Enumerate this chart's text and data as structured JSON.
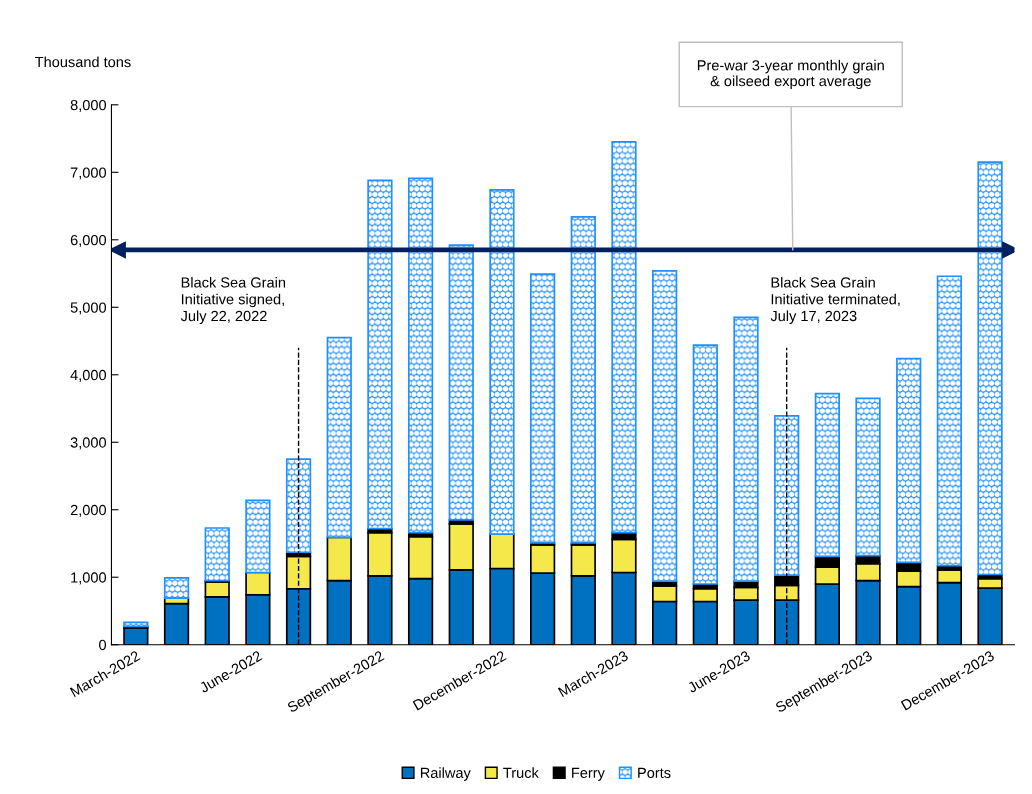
{
  "chart_data": {
    "type": "bar",
    "stacked": true,
    "ylabel": "Thousand tons",
    "categories": [
      "March-2022",
      null,
      null,
      "June-2022",
      null,
      null,
      "September-2022",
      null,
      null,
      "December-2022",
      null,
      null,
      "March-2023",
      null,
      null,
      "June-2023",
      null,
      null,
      "September-2023",
      null,
      null,
      "December-2023"
    ],
    "series": [
      {
        "name": "Railway",
        "color": "#0070c0",
        "values": [
          250,
          610,
          710,
          740,
          830,
          950,
          1020,
          980,
          1110,
          1130,
          1060,
          1020,
          1070,
          640,
          640,
          660,
          660,
          900,
          950,
          860,
          920,
          840
        ]
      },
      {
        "name": "Truck",
        "color": "#f5e84a",
        "values": [
          20,
          80,
          220,
          330,
          480,
          640,
          640,
          620,
          680,
          510,
          420,
          460,
          490,
          230,
          190,
          190,
          220,
          250,
          250,
          230,
          190,
          140
        ]
      },
      {
        "name": "Ferry",
        "color": "#000000",
        "values": [
          null,
          0,
          20,
          null,
          60,
          null,
          60,
          60,
          60,
          null,
          30,
          30,
          100,
          70,
          70,
          90,
          150,
          160,
          120,
          130,
          60,
          60
        ]
      },
      {
        "name": "Ports",
        "color": "#1e90ff",
        "values": [
          60,
          300,
          780,
          1070,
          1380,
          2960,
          5160,
          5250,
          4070,
          5100,
          3980,
          4830,
          5790,
          4600,
          3540,
          3910,
          2360,
          2410,
          2330,
          3020,
          4290,
          6110
        ]
      }
    ],
    "ylim": [
      0,
      8000
    ],
    "yticks": [
      {
        "value": 0,
        "label": "0"
      },
      {
        "value": 1000,
        "label": "1,000"
      },
      {
        "value": 2000,
        "label": "2,000"
      },
      {
        "value": 3000,
        "label": "3,000"
      },
      {
        "value": 4000,
        "label": "4,000"
      },
      {
        "value": 5000,
        "label": "5,000"
      },
      {
        "value": 6000,
        "label": "6,000"
      },
      {
        "value": 7000,
        "label": "7,000"
      },
      {
        "value": 8000,
        "label": "8,000"
      }
    ],
    "ref_lines": [
      {
        "axis": "y",
        "value": 5850,
        "label": "Pre-war 3-year monthly grain\n& oilseed export average",
        "color": "#002060",
        "line_style": "solid"
      }
    ],
    "annotations": [
      "Black Sea Grain\nInitiative signed,\nJuly 22, 2022",
      "Black Sea Grain\nInitiative terminated,\nJuly 17, 2023"
    ],
    "grid": false,
    "legend": "bottom"
  }
}
